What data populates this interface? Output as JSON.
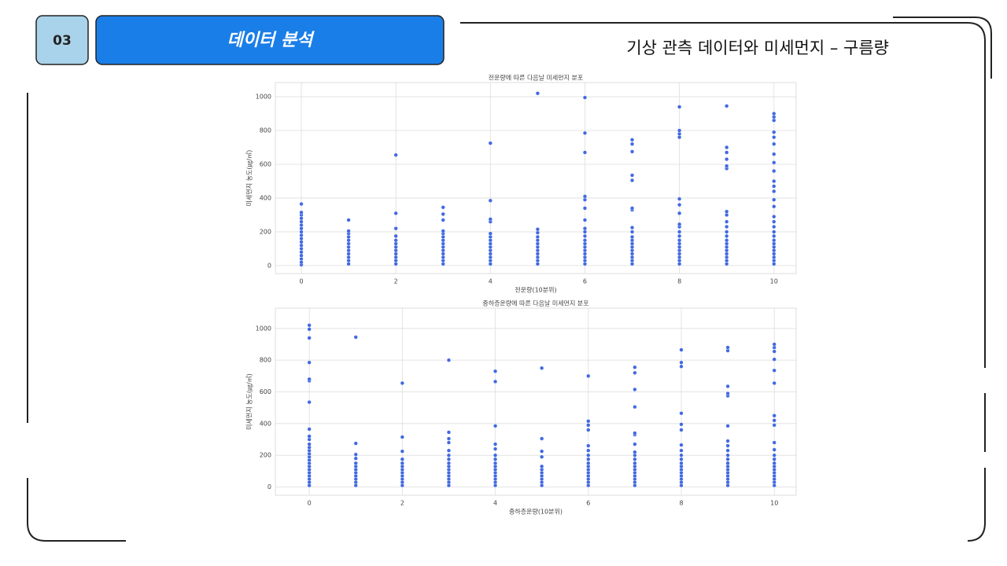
{
  "header": {
    "number": "03",
    "section": "데이터 분석",
    "title": "기상 관측 데이터와 미세먼지 – 구름량"
  },
  "chart_data": [
    {
      "type": "scatter",
      "title": "전운량에 따른 다음날 미세먼지 분포",
      "x_label": "전운량(10분위)",
      "y_label": "미세먼지 농도(㎍/㎥)",
      "color": "#4169e1",
      "grid": true,
      "xlim": [
        -0.55,
        10.47
      ],
      "ylim": [
        -47,
        1084
      ],
      "xticks": [
        0,
        2,
        4,
        6,
        8,
        10
      ],
      "yticks": [
        0,
        200,
        400,
        600,
        800,
        1000
      ],
      "x": [
        0,
        0,
        0,
        0,
        0,
        0,
        0,
        0,
        0,
        0,
        0,
        0,
        0,
        0,
        0,
        0,
        0,
        0,
        1,
        1,
        1,
        1,
        1,
        1,
        1,
        1,
        1,
        1,
        1,
        1,
        2,
        2,
        2,
        2,
        2,
        2,
        2,
        2,
        2,
        2,
        2,
        2,
        3,
        3,
        3,
        3,
        3,
        3,
        3,
        3,
        3,
        3,
        3,
        3,
        3,
        3,
        4,
        4,
        4,
        4,
        4,
        4,
        4,
        4,
        4,
        4,
        4,
        4,
        4,
        4,
        5,
        5,
        5,
        5,
        5,
        5,
        5,
        5,
        5,
        5,
        5,
        5,
        6,
        6,
        6,
        6,
        6,
        6,
        6,
        6,
        6,
        6,
        6,
        6,
        6,
        6,
        6,
        6,
        6,
        6,
        7,
        7,
        7,
        7,
        7,
        7,
        7,
        7,
        7,
        7,
        7,
        7,
        7,
        7,
        7,
        7,
        7,
        7,
        8,
        8,
        8,
        8,
        8,
        8,
        8,
        8,
        8,
        8,
        8,
        8,
        8,
        8,
        8,
        8,
        8,
        8,
        8,
        9,
        9,
        9,
        9,
        9,
        9,
        9,
        9,
        9,
        9,
        9,
        9,
        9,
        9,
        9,
        9,
        9,
        9,
        9,
        9,
        10,
        10,
        10,
        10,
        10,
        10,
        10,
        10,
        10,
        10,
        10,
        10,
        10,
        10,
        10,
        10,
        10,
        10,
        10,
        10,
        10,
        10,
        10,
        10,
        10,
        10,
        10
      ],
      "values": [
        5,
        20,
        40,
        60,
        80,
        100,
        120,
        140,
        160,
        180,
        200,
        220,
        240,
        260,
        280,
        300,
        315,
        365,
        10,
        30,
        50,
        70,
        90,
        110,
        130,
        150,
        170,
        190,
        205,
        270,
        10,
        30,
        50,
        70,
        90,
        110,
        130,
        150,
        175,
        220,
        310,
        655,
        10,
        30,
        50,
        70,
        90,
        110,
        130,
        150,
        170,
        190,
        205,
        270,
        305,
        345,
        10,
        30,
        50,
        70,
        90,
        110,
        130,
        150,
        170,
        190,
        260,
        275,
        385,
        725,
        10,
        30,
        50,
        70,
        90,
        110,
        130,
        150,
        170,
        195,
        215,
        1020,
        10,
        30,
        50,
        70,
        90,
        110,
        130,
        150,
        175,
        200,
        220,
        270,
        340,
        390,
        410,
        670,
        785,
        995,
        10,
        30,
        50,
        70,
        90,
        110,
        130,
        150,
        170,
        200,
        225,
        330,
        340,
        505,
        535,
        675,
        720,
        745,
        10,
        30,
        50,
        70,
        90,
        110,
        130,
        150,
        175,
        200,
        230,
        245,
        310,
        360,
        395,
        760,
        780,
        800,
        940,
        10,
        30,
        50,
        70,
        90,
        110,
        130,
        150,
        175,
        200,
        230,
        260,
        300,
        320,
        575,
        590,
        630,
        670,
        700,
        945,
        10,
        30,
        50,
        70,
        90,
        110,
        130,
        150,
        175,
        200,
        230,
        260,
        290,
        350,
        390,
        440,
        470,
        500,
        560,
        610,
        660,
        720,
        760,
        790,
        860,
        880,
        900
      ]
    },
    {
      "type": "scatter",
      "title": "중하층운량에 따른 다음날 미세먼지 분포",
      "x_label": "중하층운량(10분위)",
      "y_label": "미세먼지 농도(㎍/㎥)",
      "color": "#4169e1",
      "grid": true,
      "xlim": [
        -0.73,
        10.47
      ],
      "ylim": [
        -52,
        1128
      ],
      "xticks": [
        0,
        2,
        4,
        6,
        8,
        10
      ],
      "yticks": [
        0,
        200,
        400,
        600,
        800,
        1000
      ],
      "x": [
        0,
        0,
        0,
        0,
        0,
        0,
        0,
        0,
        0,
        0,
        0,
        0,
        0,
        0,
        0,
        0,
        0,
        0,
        0,
        0,
        0,
        0,
        0,
        0,
        1,
        1,
        1,
        1,
        1,
        1,
        1,
        1,
        1,
        1,
        1,
        1,
        2,
        2,
        2,
        2,
        2,
        2,
        2,
        2,
        2,
        2,
        2,
        2,
        3,
        3,
        3,
        3,
        3,
        3,
        3,
        3,
        3,
        3,
        3,
        3,
        3,
        3,
        3,
        4,
        4,
        4,
        4,
        4,
        4,
        4,
        4,
        4,
        4,
        4,
        4,
        4,
        4,
        4,
        5,
        5,
        5,
        5,
        5,
        5,
        5,
        5,
        5,
        5,
        5,
        6,
        6,
        6,
        6,
        6,
        6,
        6,
        6,
        6,
        6,
        6,
        6,
        6,
        6,
        6,
        6,
        7,
        7,
        7,
        7,
        7,
        7,
        7,
        7,
        7,
        7,
        7,
        7,
        7,
        7,
        7,
        7,
        7,
        7,
        8,
        8,
        8,
        8,
        8,
        8,
        8,
        8,
        8,
        8,
        8,
        8,
        8,
        8,
        8,
        8,
        8,
        8,
        9,
        9,
        9,
        9,
        9,
        9,
        9,
        9,
        9,
        9,
        9,
        9,
        9,
        9,
        9,
        9,
        9,
        9,
        9,
        10,
        10,
        10,
        10,
        10,
        10,
        10,
        10,
        10,
        10,
        10,
        10,
        10,
        10,
        10,
        10,
        10,
        10,
        10,
        10,
        10
      ],
      "values": [
        10,
        30,
        50,
        70,
        90,
        110,
        130,
        150,
        170,
        190,
        210,
        230,
        250,
        270,
        300,
        320,
        365,
        535,
        670,
        680,
        785,
        940,
        995,
        1020,
        10,
        30,
        50,
        70,
        90,
        110,
        130,
        150,
        180,
        205,
        275,
        945,
        10,
        30,
        50,
        70,
        90,
        110,
        130,
        150,
        175,
        225,
        315,
        655,
        10,
        30,
        50,
        70,
        90,
        110,
        130,
        150,
        175,
        200,
        230,
        280,
        305,
        345,
        800,
        10,
        30,
        50,
        70,
        90,
        110,
        130,
        150,
        175,
        200,
        240,
        270,
        385,
        665,
        730,
        10,
        30,
        50,
        70,
        90,
        110,
        130,
        190,
        225,
        305,
        750,
        10,
        30,
        50,
        70,
        90,
        110,
        130,
        150,
        175,
        200,
        230,
        260,
        360,
        390,
        415,
        700,
        10,
        30,
        50,
        70,
        90,
        110,
        130,
        150,
        175,
        200,
        220,
        270,
        330,
        340,
        505,
        615,
        720,
        755,
        10,
        30,
        50,
        70,
        90,
        110,
        130,
        150,
        175,
        200,
        230,
        265,
        360,
        395,
        465,
        760,
        785,
        865,
        10,
        30,
        50,
        70,
        90,
        110,
        130,
        150,
        175,
        200,
        230,
        260,
        290,
        385,
        575,
        590,
        635,
        860,
        880,
        10,
        30,
        50,
        70,
        90,
        110,
        130,
        150,
        175,
        200,
        235,
        280,
        390,
        420,
        450,
        655,
        735,
        805,
        855,
        880,
        900
      ]
    }
  ]
}
